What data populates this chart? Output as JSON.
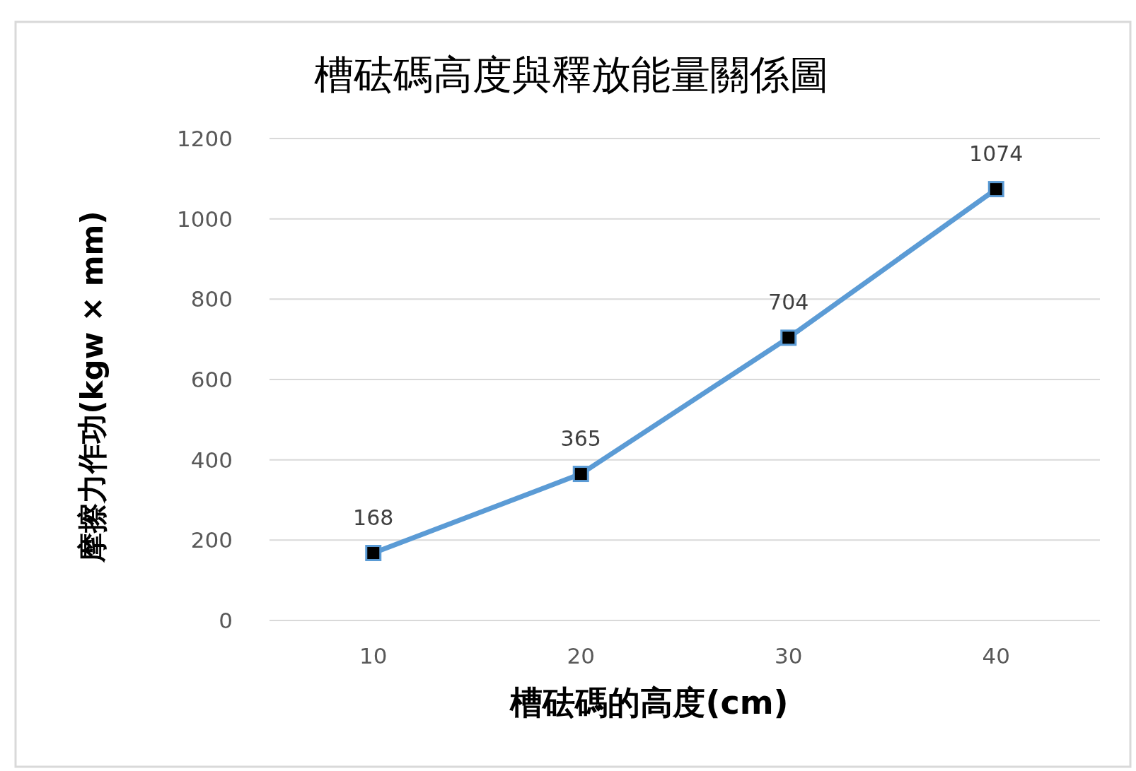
{
  "chart_data": {
    "type": "line",
    "title": "槽砝碼高度與釋放能量關係圖",
    "xlabel": "槽砝碼的高度(cm)",
    "ylabel": "摩擦力作功(kgw × mm)",
    "categories": [
      "10",
      "20",
      "30",
      "40"
    ],
    "series": [
      {
        "color": "#5b9bd5",
        "values": [
          168,
          365,
          704,
          1074
        ]
      }
    ],
    "ylim": [
      0,
      1200
    ],
    "yticks": [
      0,
      200,
      400,
      600,
      800,
      1000,
      1200
    ],
    "grid": "y",
    "marker": "square",
    "data_labels": true
  }
}
